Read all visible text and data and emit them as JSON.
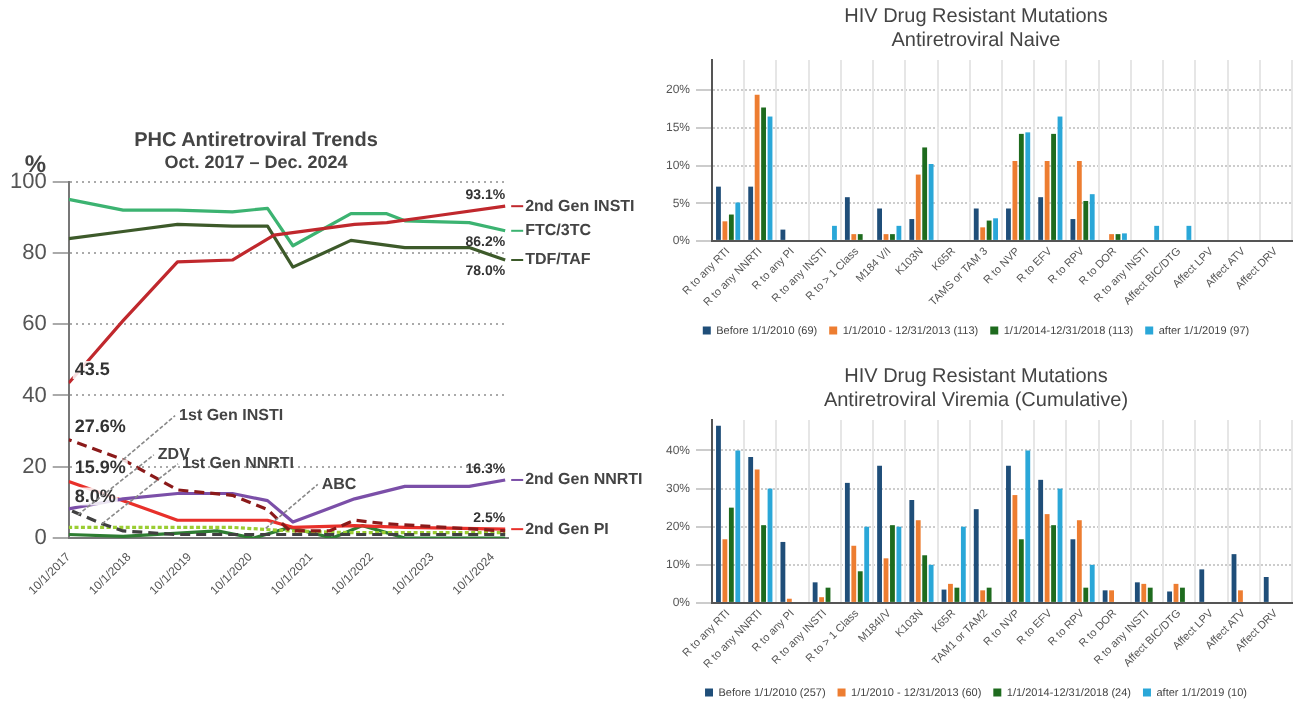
{
  "chart_data": [
    {
      "type": "line",
      "title": "PHC Antiretroviral Trends",
      "subtitle": "Oct. 2017 – Dec. 2024",
      "ylabel": "%",
      "xlim": [
        "2017-10-01",
        "2025-01-01"
      ],
      "ylim": [
        0,
        100
      ],
      "xticks": [
        {
          "value": "2017-10-01",
          "label": "10/1/2017"
        },
        {
          "value": "2018-10-01",
          "label": "10/1/2018"
        },
        {
          "value": "2019-10-01",
          "label": "10/1/2019"
        },
        {
          "value": "2020-10-01",
          "label": "10/1/2020"
        },
        {
          "value": "2021-10-01",
          "label": "10/1/2021"
        },
        {
          "value": "2022-10-01",
          "label": "10/1/2022"
        },
        {
          "value": "2023-10-01",
          "label": "10/1/2023"
        },
        {
          "value": "2024-10-01",
          "label": "10/1/2024"
        }
      ],
      "yticks": [
        0,
        20,
        40,
        60,
        80,
        100
      ],
      "grid": "y",
      "legend": "right",
      "marker": "none",
      "series": [
        {
          "name": "2nd Gen INSTI",
          "color": "#c0282d",
          "x": [
            "2017-10-01",
            "2018-08-25",
            "2019-07-19",
            "2020-06-14",
            "2021-02-20",
            "2022-06-21",
            "2023-01-01",
            "2023-11-07",
            "2024-12-15"
          ],
          "values": [
            43.5,
            61,
            77.5,
            78,
            85,
            88,
            88.5,
            90.5,
            93.1
          ],
          "value_labels": [
            "43.5",
            null,
            null,
            null,
            null,
            null,
            null,
            null,
            "93.1%"
          ]
        },
        {
          "name": "FTC/3TC",
          "color": "#3cb371",
          "x": [
            "2017-10-01",
            "2018-08-25",
            "2019-07-19",
            "2020-06-14",
            "2021-01-12",
            "2021-06-14",
            "2022-05-30",
            "2023-01-01",
            "2023-04-20",
            "2024-05-12",
            "2024-12-15"
          ],
          "values": [
            95,
            92,
            92,
            91.5,
            92.5,
            82,
            91,
            91,
            89,
            88.5,
            86.2
          ],
          "value_labels": [
            null,
            null,
            null,
            null,
            null,
            null,
            null,
            null,
            null,
            null,
            "86.2%"
          ]
        },
        {
          "name": "TDF/TAF",
          "color": "#3d5a2a",
          "x": [
            "2017-10-01",
            "2018-08-25",
            "2019-07-19",
            "2020-06-14",
            "2021-01-12",
            "2021-06-14",
            "2022-05-30",
            "2023-04-20",
            "2024-05-12",
            "2024-12-15"
          ],
          "values": [
            84,
            86,
            88,
            87.5,
            87.5,
            76,
            83.5,
            81.5,
            81.5,
            78.0
          ],
          "value_labels": [
            null,
            null,
            null,
            null,
            null,
            null,
            null,
            null,
            null,
            "78.0%"
          ]
        },
        {
          "color": "#8b1a1a",
          "line_style": "dashed",
          "x": [
            "2017-10-01",
            "2018-08-25",
            "2019-07-19",
            "2020-06-14",
            "2021-01-12",
            "2021-05-27",
            "2022-01-19",
            "2022-06-21",
            "2023-01-01",
            "2024-12-15"
          ],
          "values": [
            27.6,
            22,
            13.5,
            12,
            8,
            2,
            2,
            5,
            4,
            2
          ],
          "value_labels": [
            "27.6%",
            null,
            null,
            null,
            null,
            null,
            null,
            null,
            null,
            null
          ]
        },
        {
          "name": "2nd Gen NNRTI",
          "color": "#7b4fa8",
          "x": [
            "2017-10-01",
            "2018-08-25",
            "2019-07-19",
            "2020-06-14",
            "2021-01-12",
            "2021-06-14",
            "2022-06-21",
            "2023-04-20",
            "2024-05-12",
            "2024-12-15"
          ],
          "values": [
            8.2,
            11,
            12.5,
            12.5,
            10.5,
            4.5,
            11,
            14.5,
            14.5,
            16.3
          ],
          "value_labels": [
            null,
            null,
            null,
            null,
            null,
            null,
            null,
            null,
            null,
            "16.3%"
          ]
        },
        {
          "name": "2nd Gen PI",
          "color": "#e8302a",
          "x": [
            "2017-10-01",
            "2018-08-25",
            "2019-07-19",
            "2020-06-14",
            "2021-01-12",
            "2021-06-14",
            "2022-06-21",
            "2023-04-20",
            "2024-12-15"
          ],
          "values": [
            15.9,
            10.5,
            5,
            5,
            5,
            3,
            3.5,
            3,
            2.5
          ],
          "value_labels": [
            "15.9%",
            null,
            null,
            null,
            null,
            null,
            null,
            null,
            "2.5%"
          ]
        },
        {
          "color": "#404040",
          "line_style": "dashed",
          "x": [
            "2017-10-01",
            "2018-04-20",
            "2018-08-25",
            "2019-07-19",
            "2020-06-14",
            "2021-05-27",
            "2022-06-21",
            "2024-12-15"
          ],
          "values": [
            8.0,
            4,
            2,
            1,
            1,
            1,
            1,
            1
          ],
          "value_labels": [
            "8.0%",
            null,
            null,
            null,
            null,
            null,
            null,
            null
          ]
        },
        {
          "color": "#9acd32",
          "line_style": "dotted",
          "x": [
            "2017-10-01",
            "2018-08-25",
            "2020-06-14",
            "2021-05-27",
            "2022-06-21",
            "2024-12-15"
          ],
          "values": [
            3,
            3,
            3,
            2,
            1.5,
            1.5
          ]
        },
        {
          "color": "#2e7d32",
          "x": [
            "2017-10-01",
            "2018-08-25",
            "2020-03-14",
            "2020-10-20",
            "2021-05-27",
            "2022-02-07",
            "2022-08-08",
            "2023-04-20",
            "2024-12-15"
          ],
          "values": [
            1,
            0.5,
            2,
            0,
            3,
            0,
            3.5,
            0,
            0
          ]
        }
      ],
      "annotations": [
        {
          "text": "1st Gen INSTI",
          "x": "2018-08-25",
          "y": 22
        },
        {
          "text": "1st Gen NNRTI",
          "x": "2018-04-20",
          "y": 4
        },
        {
          "text": "ABC",
          "x": "2021-01-01",
          "y": 2.7
        },
        {
          "text": "ZDV",
          "x": "2017-11-25",
          "y": 6.5
        }
      ]
    },
    {
      "type": "bar",
      "title": "HIV Drug Resistant Mutations",
      "subtitle": "Antiretroviral Naive",
      "ylim": [
        0,
        24
      ],
      "yticks": [
        {
          "value": 0,
          "label": "0%"
        },
        {
          "value": 5,
          "label": "5%"
        },
        {
          "value": 10,
          "label": "10%"
        },
        {
          "value": 15,
          "label": "15%"
        },
        {
          "value": 20,
          "label": "20%"
        }
      ],
      "grid": "y",
      "legend": "bottom",
      "categories": [
        "R to any RTI",
        "R to any NNRTI",
        "R to any PI",
        "R to any INSTI",
        "R to > 1 Class",
        "M184 V/I",
        "K103N",
        "K65R",
        "TAMS or TAM 3",
        "R to NVP",
        "R to EFV",
        "R to RPV",
        "R to DOR",
        "R to any INSTI",
        "Affect BIC/DTG",
        "Affect LPV",
        "Affect ATV",
        "Affect DRV"
      ],
      "series": [
        {
          "name": "Before 1/1/2010 (69)",
          "color": "#1f4e79",
          "values": [
            7.2,
            7.2,
            1.5,
            0,
            5.8,
            4.3,
            2.9,
            0,
            4.3,
            4.3,
            5.8,
            2.9,
            0,
            0,
            0,
            0,
            0,
            0
          ]
        },
        {
          "name": "1/1/2010 - 12/31/2013 (113)",
          "color": "#ed7d31",
          "values": [
            2.6,
            19.4,
            0,
            0,
            0.9,
            0.9,
            8.8,
            0,
            1.8,
            10.6,
            10.6,
            10.6,
            0.9,
            0,
            0,
            0,
            0,
            0
          ]
        },
        {
          "name": "1/1/2014-12/31/2018 (113)",
          "color": "#1e6b1e",
          "values": [
            3.5,
            17.7,
            0,
            0,
            0.9,
            0.9,
            12.4,
            0,
            2.7,
            14.2,
            14.2,
            5.3,
            0.9,
            0,
            0,
            0,
            0,
            0
          ]
        },
        {
          "name": "after 1/1/2019 (97)",
          "color": "#2aa7d8",
          "values": [
            5.1,
            16.5,
            0,
            2.0,
            0,
            2.0,
            10.2,
            0,
            3.0,
            14.4,
            16.5,
            6.2,
            1.0,
            2.0,
            2.0,
            0,
            0,
            0
          ]
        }
      ]
    },
    {
      "type": "bar",
      "title": "HIV Drug Resistant Mutations",
      "subtitle": "Antiretroviral Viremia (Cumulative)",
      "ylim": [
        0,
        48
      ],
      "yticks": [
        {
          "value": 0,
          "label": "0%"
        },
        {
          "value": 10,
          "label": "10%"
        },
        {
          "value": 20,
          "label": "20%"
        },
        {
          "value": 30,
          "label": "30%"
        },
        {
          "value": 40,
          "label": "40%"
        }
      ],
      "grid": "y",
      "legend": "bottom",
      "categories": [
        "R to any RTI",
        "R to any NNRTI",
        "R to any PI",
        "R to any INSTI",
        "R to > 1 Class",
        "M184I/V",
        "K103N",
        "K65R",
        "TAM1 or TAM2",
        "R to NVP",
        "R to EFV",
        "R to RPV",
        "R to DOR",
        "R to any INSTI",
        "Affect BIC/DTG",
        "Affect LPV",
        "Affect ATV",
        "Affect DRV"
      ],
      "series": [
        {
          "name": "Before 1/1/2010 (257)",
          "color": "#1f4e79",
          "values": [
            46.5,
            38.3,
            16,
            5.4,
            31.5,
            36,
            27,
            3.5,
            24.6,
            36,
            32.3,
            16.7,
            3.3,
            5.4,
            3,
            8.8,
            12.8,
            6.8
          ]
        },
        {
          "name": "1/1/2010 - 12/31/2013 (60)",
          "color": "#ed7d31",
          "values": [
            16.7,
            35,
            1.1,
            1.5,
            15,
            11.7,
            21.7,
            5,
            3.3,
            28.3,
            23.3,
            21.7,
            3.3,
            5,
            5,
            0,
            3.3,
            0
          ]
        },
        {
          "name": "1/1/2014-12/31/2018 (24)",
          "color": "#1e6b1e",
          "values": [
            25,
            20.4,
            0,
            4,
            8.3,
            20.4,
            12.5,
            4,
            4,
            16.7,
            20.4,
            4,
            0,
            4,
            4,
            0,
            0,
            0
          ]
        },
        {
          "name": "after 1/1/2019 (10)",
          "color": "#2aa7d8",
          "values": [
            40,
            30,
            0,
            0,
            20,
            20,
            10,
            20,
            0,
            40,
            30,
            10,
            0,
            0,
            0,
            0,
            0,
            0
          ]
        }
      ]
    }
  ]
}
